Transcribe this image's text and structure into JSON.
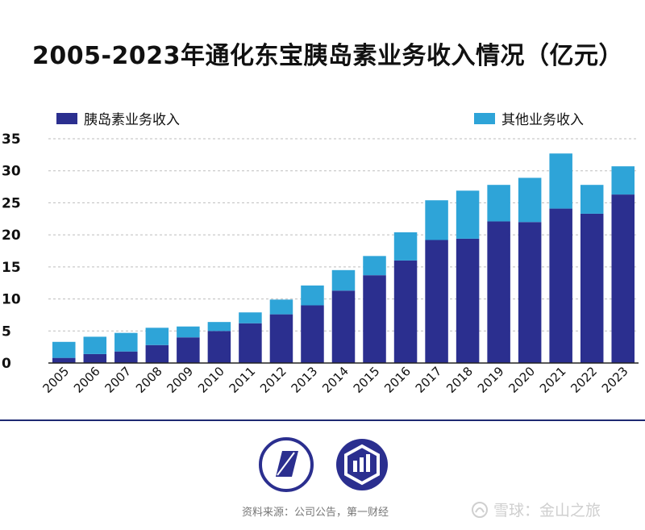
{
  "title": "2005-2023年通化东宝胰岛素业务收入情况（亿元）",
  "source_text": "资料来源：公司公告，第一财经",
  "watermark": {
    "text": "雪球：金山之旅",
    "icon": "snowball-icon"
  },
  "colors": {
    "main": "#2b2f8f",
    "other": "#2ea4d8",
    "divider": "#1e2a72"
  },
  "chart_data": {
    "type": "bar",
    "stacked": true,
    "title": "2005-2023年通化东宝胰岛素业务收入情况（亿元）",
    "xlabel": "",
    "ylabel": "",
    "ylim": [
      0,
      35
    ],
    "yticks": [
      0,
      5,
      10,
      15,
      20,
      25,
      30,
      35
    ],
    "grid": true,
    "legend_placement": "top",
    "categories": [
      "2005",
      "2006",
      "2007",
      "2008",
      "2009",
      "2010",
      "2011",
      "2012",
      "2013",
      "2014",
      "2015",
      "2016",
      "2017",
      "2018",
      "2019",
      "2020",
      "2021",
      "2022",
      "2023"
    ],
    "series": [
      {
        "name": "胰岛素业务收入",
        "color": "#2b2f8f",
        "values": [
          0.8,
          1.4,
          1.8,
          2.8,
          4.0,
          5.0,
          6.2,
          7.6,
          9.0,
          11.3,
          13.7,
          16.0,
          19.2,
          19.4,
          22.1,
          22.0,
          24.1,
          23.3,
          26.3
        ]
      },
      {
        "name": "其他业务收入",
        "color": "#2ea4d8",
        "values": [
          2.5,
          2.7,
          2.9,
          2.7,
          1.7,
          1.4,
          1.7,
          2.3,
          3.1,
          3.2,
          3.0,
          4.4,
          6.2,
          7.5,
          5.7,
          6.9,
          8.6,
          4.5,
          4.4
        ]
      }
    ]
  }
}
